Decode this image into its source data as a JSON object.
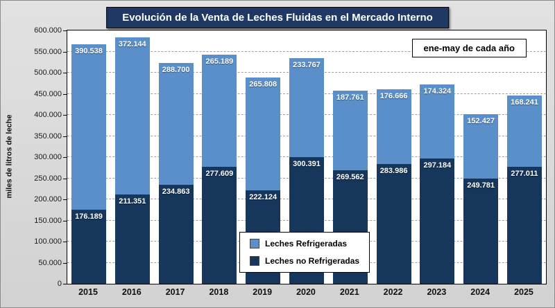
{
  "chart_data": {
    "type": "bar",
    "stacked": true,
    "title": "Evolución de la Venta de Leches Fluidas en el Mercado Interno",
    "annotation": "ene-may de cada año",
    "ylabel": "miles de litros de leche",
    "categories": [
      "2015",
      "2016",
      "2017",
      "2018",
      "2019",
      "2020",
      "2021",
      "2022",
      "2023",
      "2024",
      "2025"
    ],
    "series": [
      {
        "name": "Leches no Refrigeradas",
        "color": "#16365c",
        "values": [
          176189,
          211351,
          234863,
          277609,
          222124,
          300391,
          269562,
          283986,
          297184,
          249781,
          277011
        ]
      },
      {
        "name": "Leches Refrigeradas",
        "color": "#5b8fc9",
        "values": [
          390538,
          372144,
          288700,
          265189,
          265808,
          233767,
          187761,
          176666,
          174324,
          152427,
          168241
        ]
      }
    ],
    "legend": [
      {
        "label": "Leches Refrigeradas",
        "color": "#5b8fc9"
      },
      {
        "label": "Leches no Refrigeradas",
        "color": "#16365c"
      }
    ],
    "ylim": [
      0,
      600000
    ],
    "ytick_step": 50000,
    "grid": "dashed horizontal",
    "legend_position": "inside bottom-center",
    "number_format": "thousands dot"
  },
  "colors": {
    "title_bg": "#1f3864",
    "plot_bg": "#ffffff",
    "canvas_bg": "#d6d6d6",
    "grid": "#9e9e9e"
  }
}
